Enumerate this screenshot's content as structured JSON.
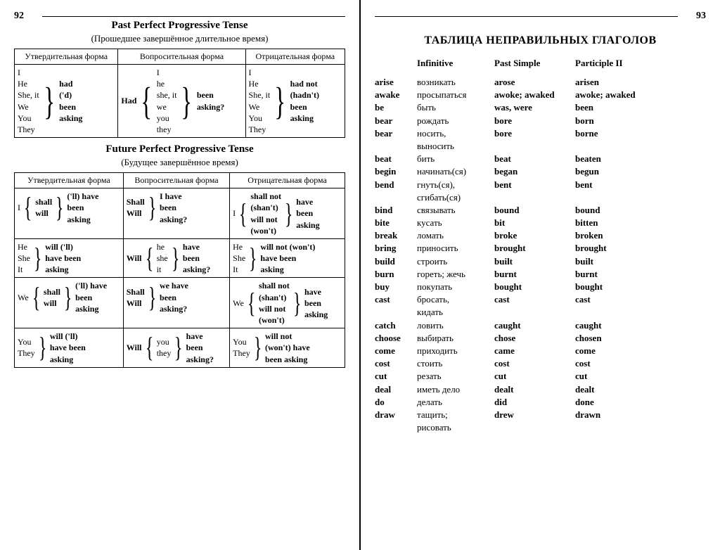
{
  "left": {
    "pagenum": "92",
    "tense1": {
      "title": "Past Perfect Progressive Tense",
      "subtitle": "(Прошедшее завершённое длительное время)",
      "headers": [
        "Утвердительная форма",
        "Вопросительная форма",
        "Отрицательная форма"
      ],
      "subjects": [
        "I",
        "He",
        "She, it",
        "We",
        "You",
        "They"
      ],
      "aff": [
        "had",
        "('d)",
        "been",
        "asking"
      ],
      "q_aux": "Had",
      "q_subj": [
        "I",
        "he",
        "she, it",
        "we",
        "you",
        "they"
      ],
      "q_verb": [
        "been",
        "asking?"
      ],
      "neg": [
        "had not",
        "(hadn't)",
        "been",
        "asking"
      ]
    },
    "tense2": {
      "title": "Future Perfect Progressive Tense",
      "subtitle": "(Будущее завершённое время)",
      "headers": [
        "Утвердительная форма",
        "Вопросительная форма",
        "Отрицательная форма"
      ],
      "r1a_s": "I",
      "r1a_aux": [
        "shall",
        "will"
      ],
      "r1a_v": [
        "('ll) have",
        "been",
        "asking"
      ],
      "r1q_aux": [
        "Shall",
        "Will"
      ],
      "r1q_v": [
        "I have",
        "been",
        "asking?"
      ],
      "r1n_s": "I",
      "r1n_aux": [
        "shall not",
        "(shan't)",
        "will not",
        "(won't)"
      ],
      "r1n_v": [
        "have",
        "been",
        "asking"
      ],
      "r2a_s": [
        "He",
        "She",
        "It"
      ],
      "r2a_v": [
        "will ('ll)",
        "have been",
        "asking"
      ],
      "r2q_aux": "Will",
      "r2q_s": [
        "he",
        "she",
        "it"
      ],
      "r2q_v": [
        "have",
        "been",
        "asking?"
      ],
      "r2n_s": [
        "He",
        "She",
        "It"
      ],
      "r2n_v": [
        "will not (won't)",
        "have been",
        "asking"
      ],
      "r3a_s": "We",
      "r3a_aux": [
        "shall",
        "will"
      ],
      "r3a_v": [
        "('ll) have",
        "been",
        "asking"
      ],
      "r3q_aux": [
        "Shall",
        "Will"
      ],
      "r3q_v": [
        "we have",
        "been",
        "asking?"
      ],
      "r3n_s": "We",
      "r3n_aux": [
        "shall not",
        "(shan't)",
        "will not",
        "(won't)"
      ],
      "r3n_v": [
        "have",
        "been",
        "asking"
      ],
      "r4a_s": [
        "You",
        "They"
      ],
      "r4a_v": [
        "will ('ll)",
        "have been",
        "asking"
      ],
      "r4q_aux": "Will",
      "r4q_s": [
        "you",
        "they"
      ],
      "r4q_v": [
        "have",
        "been",
        "asking?"
      ],
      "r4n_s": [
        "You",
        "They"
      ],
      "r4n_v": [
        "will not",
        "(won't) have",
        "been asking"
      ]
    }
  },
  "right": {
    "pagenum": "93",
    "title": "ТАБЛИЦА НЕПРАВИЛЬНЫХ ГЛАГОЛОВ",
    "headers": [
      "Infinitive",
      "",
      "Past Simple",
      "Participle II"
    ],
    "rows": [
      [
        "arise",
        "возникать",
        "arose",
        "arisen"
      ],
      [
        "awake",
        "просыпаться",
        "awoke; awaked",
        "awoke; awaked"
      ],
      [
        "be",
        "быть",
        "was, were",
        "been"
      ],
      [
        "bear",
        "рождать",
        "bore",
        "born"
      ],
      [
        "bear",
        "носить,",
        "bore",
        "borne"
      ],
      [
        "",
        "выносить",
        "",
        ""
      ],
      [
        "beat",
        "бить",
        "beat",
        "beaten"
      ],
      [
        "begin",
        "начинать(ся)",
        "began",
        "begun"
      ],
      [
        "bend",
        "гнуть(ся),",
        "bent",
        "bent"
      ],
      [
        "",
        "сгибать(ся)",
        "",
        ""
      ],
      [
        "bind",
        "связывать",
        "bound",
        "bound"
      ],
      [
        "bite",
        "кусать",
        "bit",
        "bitten"
      ],
      [
        "break",
        "ломать",
        "broke",
        "broken"
      ],
      [
        "bring",
        "приносить",
        "brought",
        "brought"
      ],
      [
        "build",
        "строить",
        "built",
        "built"
      ],
      [
        "burn",
        "гореть; жечь",
        "burnt",
        "burnt"
      ],
      [
        "buy",
        "покупать",
        "bought",
        "bought"
      ],
      [
        "cast",
        "бросать,",
        "cast",
        "cast"
      ],
      [
        "",
        "кидать",
        "",
        ""
      ],
      [
        "catch",
        "ловить",
        "caught",
        "caught"
      ],
      [
        "choose",
        "выбирать",
        "chose",
        "chosen"
      ],
      [
        "come",
        "приходить",
        "came",
        "come"
      ],
      [
        "cost",
        "стоить",
        "cost",
        "cost"
      ],
      [
        "cut",
        "резать",
        "cut",
        "cut"
      ],
      [
        "deal",
        "иметь дело",
        "dealt",
        "dealt"
      ],
      [
        "do",
        "делать",
        "did",
        "done"
      ],
      [
        "draw",
        "тащить;",
        "drew",
        "drawn"
      ],
      [
        "",
        "рисовать",
        "",
        ""
      ]
    ]
  }
}
